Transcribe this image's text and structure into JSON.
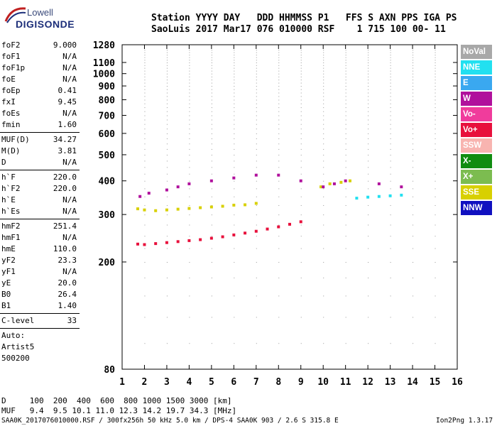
{
  "logo": {
    "line1": "Lowell",
    "line2": "DIGISONDE"
  },
  "header": {
    "labels": "Station YYYY DAY   DDD HHMMSS P1   FFS S AXN PPS IGA PS",
    "values": "SaoLuis 2017 Mar17 076 010000 RSF    1 715 100 00- 11"
  },
  "params_group1": [
    {
      "k": "foF2",
      "v": "9.000"
    },
    {
      "k": "foF1",
      "v": "N/A"
    },
    {
      "k": "foF1p",
      "v": "N/A"
    },
    {
      "k": "foE",
      "v": "N/A"
    },
    {
      "k": "foEp",
      "v": "0.41"
    },
    {
      "k": "fxI",
      "v": "9.45"
    },
    {
      "k": "foEs",
      "v": "N/A"
    },
    {
      "k": "fmin",
      "v": "1.60"
    }
  ],
  "params_group2": [
    {
      "k": "MUF(D)",
      "v": "34.27"
    },
    {
      "k": "M(D)",
      "v": "3.81"
    },
    {
      "k": "D",
      "v": "N/A"
    }
  ],
  "params_group3": [
    {
      "k": "h`F",
      "v": "220.0"
    },
    {
      "k": "h`F2",
      "v": "220.0"
    },
    {
      "k": "h`E",
      "v": "N/A"
    },
    {
      "k": "h`Es",
      "v": "N/A"
    }
  ],
  "params_group4": [
    {
      "k": "hmF2",
      "v": "251.4"
    },
    {
      "k": "hmF1",
      "v": "N/A"
    },
    {
      "k": "hmE",
      "v": "110.0"
    },
    {
      "k": "yF2",
      "v": "23.3"
    },
    {
      "k": "yF1",
      "v": "N/A"
    },
    {
      "k": "yE",
      "v": "20.0"
    },
    {
      "k": "B0",
      "v": "26.4"
    },
    {
      "k": "B1",
      "v": "1.40"
    }
  ],
  "clevel": {
    "k": "C-level",
    "v": "33"
  },
  "auto": {
    "line1": "Auto:",
    "line2": "Artist5",
    "line3": "500200"
  },
  "legend": [
    {
      "label": "NoVal",
      "color": "#a8a8a8"
    },
    {
      "label": "NNE",
      "color": "#22e0f0"
    },
    {
      "label": "E",
      "color": "#3aa8f0"
    },
    {
      "label": "W",
      "color": "#b0109c"
    },
    {
      "label": "Vo-",
      "color": "#f03c9c"
    },
    {
      "label": "Vo+",
      "color": "#e8103c"
    },
    {
      "label": "SSW",
      "color": "#f8b4b0"
    },
    {
      "label": "X-",
      "color": "#108c10"
    },
    {
      "label": "X+",
      "color": "#7cbc50"
    },
    {
      "label": "SSE",
      "color": "#d8d000"
    },
    {
      "label": "NNW",
      "color": "#1010c0"
    }
  ],
  "footer": {
    "d_row": "D     100  200  400  600  800 1000 1500 3000 [km]",
    "muf_row": "MUF   9.4  9.5 10.1 11.0 12.3 14.2 19.7 34.3 [MHz]",
    "file": "SAA0K_2017076010000.RSF / 300fx256h 50 kHz 5.0 km / DPS-4 SAA0K 903 / 2.6 S 315.8 E",
    "version": "Ion2Png 1.3.17"
  },
  "chart_data": {
    "type": "scatter",
    "title": "",
    "xlabel": "",
    "ylabel": "",
    "xlim": [
      1,
      16
    ],
    "ylim": [
      80,
      1280
    ],
    "y_scale": "log",
    "grid": false,
    "x_ticks": [
      1,
      2,
      3,
      4,
      5,
      6,
      7,
      8,
      9,
      10,
      11,
      12,
      13,
      14,
      15,
      16
    ],
    "y_ticks": [
      80,
      200,
      300,
      400,
      500,
      600,
      700,
      800,
      900,
      1000,
      1100,
      1280
    ],
    "series": [
      {
        "name": "Vo+",
        "color": "#e8103c",
        "x": [
          1.7,
          2.0,
          2.5,
          3.0,
          3.5,
          4.0,
          4.5,
          5.0,
          5.5,
          6.0,
          6.5,
          7.0,
          7.5,
          8.0,
          8.5,
          9.0
        ],
        "y": [
          233,
          232,
          234,
          236,
          238,
          240,
          242,
          245,
          248,
          252,
          256,
          260,
          265,
          270,
          276,
          282
        ]
      },
      {
        "name": "SSE",
        "color": "#d8d000",
        "x": [
          1.7,
          2.0,
          2.5,
          3.0,
          3.5,
          4.0,
          4.5,
          5.0,
          5.5,
          6.0,
          6.5,
          7.0,
          9.9,
          10.3,
          10.8,
          11.2
        ],
        "y": [
          315,
          312,
          310,
          312,
          314,
          316,
          318,
          320,
          322,
          325,
          326,
          330,
          380,
          390,
          395,
          400
        ]
      },
      {
        "name": "W",
        "color": "#b0109c",
        "x": [
          1.8,
          2.2,
          3.0,
          3.5,
          4.0,
          5.0,
          6.0,
          7.0,
          8.0,
          9.0,
          10.0,
          10.5,
          11.0,
          12.5,
          13.5
        ],
        "y": [
          350,
          360,
          370,
          380,
          390,
          400,
          410,
          420,
          420,
          400,
          380,
          390,
          400,
          390,
          380
        ]
      },
      {
        "name": "NNE",
        "color": "#22e0f0",
        "x": [
          11.5,
          12.0,
          12.5,
          13.0,
          13.5
        ],
        "y": [
          345,
          348,
          350,
          352,
          354
        ]
      }
    ]
  }
}
